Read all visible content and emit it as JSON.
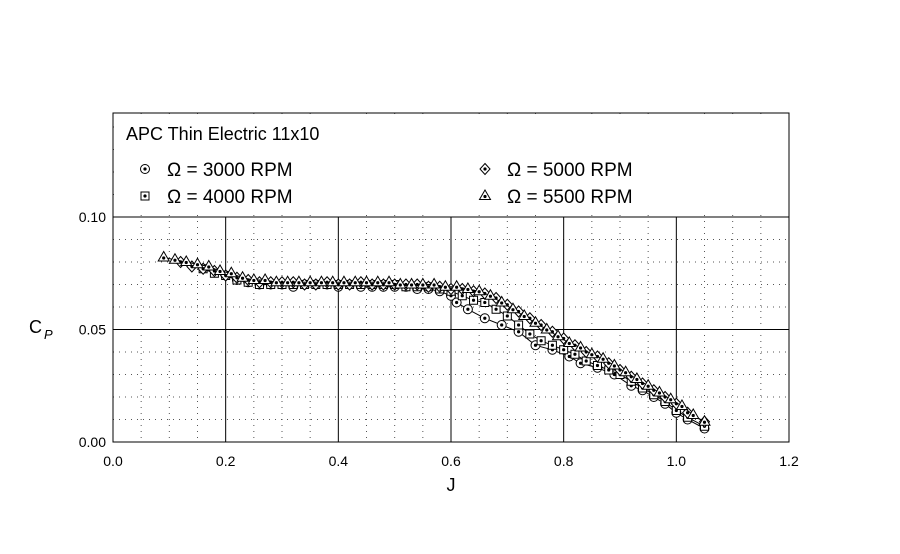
{
  "chart_data": {
    "type": "line",
    "title": "APC Thin Electric 11x10",
    "xlabel": "J",
    "ylabel": "C",
    "ylabel_sub": "P",
    "xlim": [
      0.0,
      1.2
    ],
    "ylim": [
      0.0,
      0.15
    ],
    "xticks": [
      "0.0",
      "0.2",
      "0.4",
      "0.6",
      "0.8",
      "1.0",
      "1.2"
    ],
    "yticks": [
      "0.00",
      "0.05",
      "0.10"
    ],
    "grid": true,
    "legend_position": "top",
    "series": [
      {
        "name": "Ω = 3000 RPM",
        "marker": "circle-dot",
        "points": [
          [
            0.2,
            0.074
          ],
          [
            0.22,
            0.072
          ],
          [
            0.24,
            0.071
          ],
          [
            0.26,
            0.07
          ],
          [
            0.28,
            0.07
          ],
          [
            0.3,
            0.07
          ],
          [
            0.32,
            0.069
          ],
          [
            0.34,
            0.07
          ],
          [
            0.36,
            0.07
          ],
          [
            0.38,
            0.07
          ],
          [
            0.4,
            0.069
          ],
          [
            0.42,
            0.07
          ],
          [
            0.44,
            0.069
          ],
          [
            0.46,
            0.069
          ],
          [
            0.48,
            0.069
          ],
          [
            0.5,
            0.069
          ],
          [
            0.52,
            0.069
          ],
          [
            0.54,
            0.068
          ],
          [
            0.56,
            0.068
          ],
          [
            0.58,
            0.067
          ],
          [
            0.6,
            0.065
          ],
          [
            0.61,
            0.062
          ],
          [
            0.63,
            0.059
          ],
          [
            0.66,
            0.055
          ],
          [
            0.69,
            0.052
          ],
          [
            0.72,
            0.049
          ],
          [
            0.75,
            0.043
          ],
          [
            0.78,
            0.041
          ],
          [
            0.81,
            0.038
          ],
          [
            0.83,
            0.035
          ],
          [
            0.86,
            0.033
          ],
          [
            0.89,
            0.03
          ],
          [
            0.92,
            0.025
          ],
          [
            0.94,
            0.023
          ],
          [
            0.96,
            0.02
          ],
          [
            0.98,
            0.017
          ],
          [
            1.0,
            0.013
          ],
          [
            1.02,
            0.01
          ],
          [
            1.05,
            0.006
          ]
        ]
      },
      {
        "name": "Ω = 4000 RPM",
        "marker": "square-dot",
        "points": [
          [
            0.16,
            0.077
          ],
          [
            0.18,
            0.075
          ],
          [
            0.2,
            0.074
          ],
          [
            0.22,
            0.072
          ],
          [
            0.24,
            0.071
          ],
          [
            0.26,
            0.07
          ],
          [
            0.28,
            0.07
          ],
          [
            0.3,
            0.07
          ],
          [
            0.32,
            0.07
          ],
          [
            0.34,
            0.07
          ],
          [
            0.36,
            0.07
          ],
          [
            0.38,
            0.07
          ],
          [
            0.4,
            0.07
          ],
          [
            0.42,
            0.07
          ],
          [
            0.44,
            0.07
          ],
          [
            0.46,
            0.07
          ],
          [
            0.48,
            0.07
          ],
          [
            0.5,
            0.07
          ],
          [
            0.52,
            0.069
          ],
          [
            0.54,
            0.069
          ],
          [
            0.56,
            0.069
          ],
          [
            0.58,
            0.068
          ],
          [
            0.6,
            0.067
          ],
          [
            0.62,
            0.065
          ],
          [
            0.64,
            0.063
          ],
          [
            0.66,
            0.062
          ],
          [
            0.68,
            0.059
          ],
          [
            0.7,
            0.056
          ],
          [
            0.72,
            0.052
          ],
          [
            0.74,
            0.048
          ],
          [
            0.76,
            0.045
          ],
          [
            0.78,
            0.043
          ],
          [
            0.8,
            0.041
          ],
          [
            0.82,
            0.039
          ],
          [
            0.84,
            0.036
          ],
          [
            0.86,
            0.034
          ],
          [
            0.88,
            0.032
          ],
          [
            0.9,
            0.03
          ],
          [
            0.92,
            0.027
          ],
          [
            0.94,
            0.024
          ],
          [
            0.96,
            0.021
          ],
          [
            0.98,
            0.018
          ],
          [
            1.0,
            0.014
          ],
          [
            1.02,
            0.011
          ],
          [
            1.05,
            0.007
          ]
        ]
      },
      {
        "name": "Ω = 5000 RPM",
        "marker": "diamond-dot",
        "points": [
          [
            0.12,
            0.08
          ],
          [
            0.14,
            0.078
          ],
          [
            0.16,
            0.077
          ],
          [
            0.18,
            0.076
          ],
          [
            0.2,
            0.074
          ],
          [
            0.22,
            0.073
          ],
          [
            0.24,
            0.072
          ],
          [
            0.26,
            0.071
          ],
          [
            0.28,
            0.071
          ],
          [
            0.3,
            0.071
          ],
          [
            0.32,
            0.071
          ],
          [
            0.34,
            0.07
          ],
          [
            0.36,
            0.07
          ],
          [
            0.38,
            0.071
          ],
          [
            0.4,
            0.07
          ],
          [
            0.42,
            0.07
          ],
          [
            0.44,
            0.071
          ],
          [
            0.46,
            0.07
          ],
          [
            0.48,
            0.07
          ],
          [
            0.5,
            0.07
          ],
          [
            0.52,
            0.07
          ],
          [
            0.54,
            0.07
          ],
          [
            0.56,
            0.069
          ],
          [
            0.58,
            0.069
          ],
          [
            0.6,
            0.068
          ],
          [
            0.62,
            0.068
          ],
          [
            0.64,
            0.067
          ],
          [
            0.66,
            0.066
          ],
          [
            0.68,
            0.064
          ],
          [
            0.7,
            0.061
          ],
          [
            0.72,
            0.058
          ],
          [
            0.74,
            0.055
          ],
          [
            0.76,
            0.052
          ],
          [
            0.78,
            0.049
          ],
          [
            0.8,
            0.046
          ],
          [
            0.82,
            0.043
          ],
          [
            0.84,
            0.04
          ],
          [
            0.86,
            0.038
          ],
          [
            0.88,
            0.035
          ],
          [
            0.9,
            0.032
          ],
          [
            0.92,
            0.029
          ],
          [
            0.94,
            0.026
          ],
          [
            0.96,
            0.023
          ],
          [
            0.98,
            0.02
          ],
          [
            1.0,
            0.017
          ],
          [
            1.02,
            0.013
          ],
          [
            1.05,
            0.009
          ]
        ]
      },
      {
        "name": "Ω = 5500 RPM",
        "marker": "triangle-dot",
        "points": [
          [
            0.09,
            0.082
          ],
          [
            0.11,
            0.081
          ],
          [
            0.13,
            0.08
          ],
          [
            0.15,
            0.079
          ],
          [
            0.17,
            0.078
          ],
          [
            0.19,
            0.076
          ],
          [
            0.21,
            0.075
          ],
          [
            0.23,
            0.073
          ],
          [
            0.25,
            0.072
          ],
          [
            0.27,
            0.072
          ],
          [
            0.29,
            0.071
          ],
          [
            0.31,
            0.071
          ],
          [
            0.33,
            0.071
          ],
          [
            0.35,
            0.071
          ],
          [
            0.37,
            0.071
          ],
          [
            0.39,
            0.071
          ],
          [
            0.41,
            0.071
          ],
          [
            0.43,
            0.071
          ],
          [
            0.45,
            0.071
          ],
          [
            0.47,
            0.071
          ],
          [
            0.49,
            0.071
          ],
          [
            0.51,
            0.07
          ],
          [
            0.53,
            0.07
          ],
          [
            0.55,
            0.07
          ],
          [
            0.57,
            0.07
          ],
          [
            0.59,
            0.069
          ],
          [
            0.61,
            0.069
          ],
          [
            0.63,
            0.068
          ],
          [
            0.65,
            0.067
          ],
          [
            0.67,
            0.065
          ],
          [
            0.69,
            0.062
          ],
          [
            0.71,
            0.059
          ],
          [
            0.73,
            0.056
          ],
          [
            0.75,
            0.053
          ],
          [
            0.77,
            0.05
          ],
          [
            0.79,
            0.047
          ],
          [
            0.81,
            0.044
          ],
          [
            0.83,
            0.042
          ],
          [
            0.85,
            0.039
          ],
          [
            0.87,
            0.037
          ],
          [
            0.89,
            0.034
          ],
          [
            0.91,
            0.031
          ],
          [
            0.93,
            0.028
          ],
          [
            0.95,
            0.025
          ],
          [
            0.97,
            0.022
          ],
          [
            0.99,
            0.019
          ],
          [
            1.01,
            0.016
          ],
          [
            1.03,
            0.012
          ],
          [
            1.05,
            0.009
          ]
        ]
      }
    ]
  }
}
